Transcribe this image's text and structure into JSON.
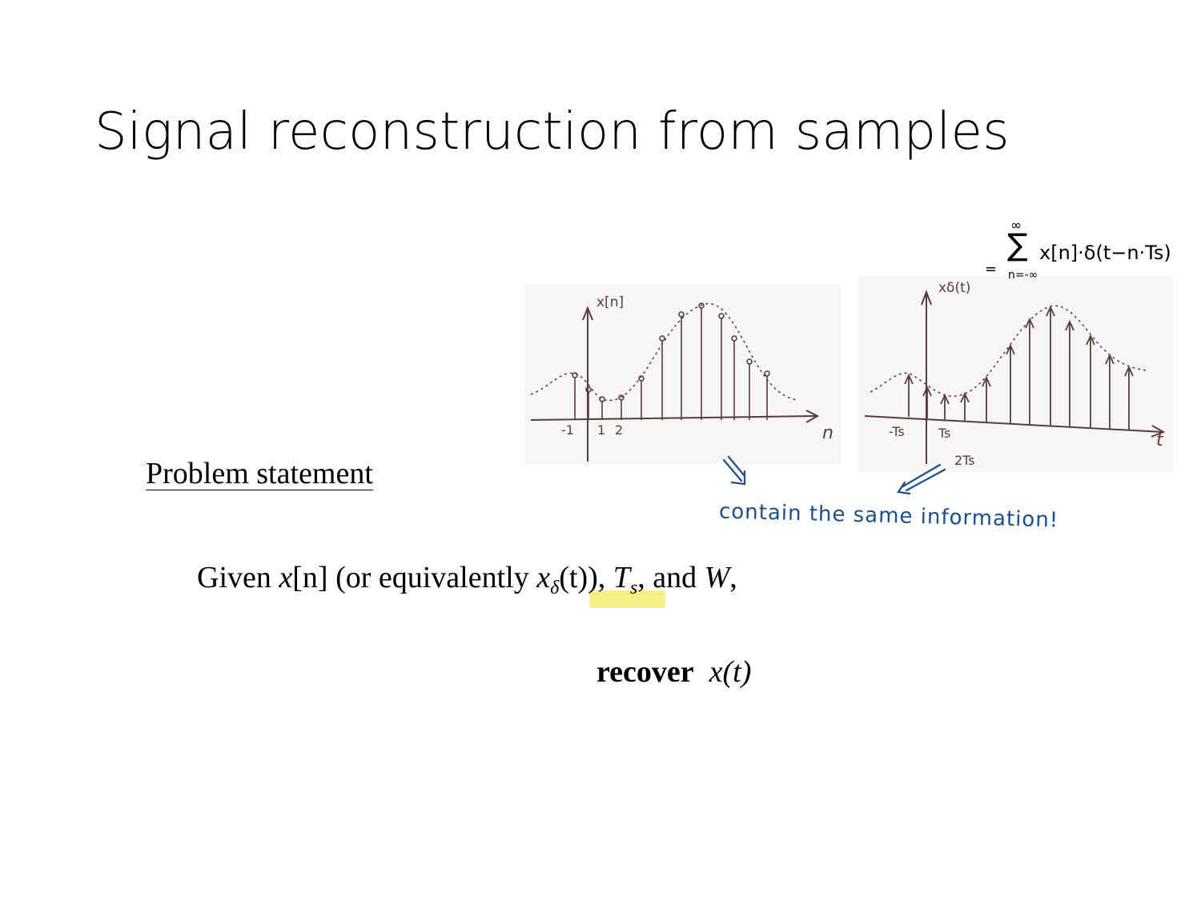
{
  "slide": {
    "title": "Signal reconstruction from samples",
    "problem_heading": "Problem statement",
    "given": {
      "word_given": "Given",
      "x": "x",
      "n_bracket": "[n]",
      "paren_open": " (or equivalently ",
      "x_delta": "x",
      "delta": "δ",
      "t_part": "(t)),",
      "T": " T",
      "s": "s",
      "and": ", and ",
      "W": "W",
      "comma": ","
    },
    "recover": {
      "bold": "recover",
      "expr": "x(t)"
    }
  },
  "figure_left": {
    "ylabel": "x[n]",
    "xlabel": "n",
    "ticks": [
      "-1",
      "1",
      "2"
    ]
  },
  "figure_right": {
    "ylabel": "xδ(t)",
    "xlabel": "t",
    "ticks": [
      "-Ts",
      "Ts",
      "2Ts"
    ]
  },
  "annotations": {
    "formula_eq": "=",
    "formula_sum": "∑",
    "formula_top": "∞",
    "formula_bottom": "n=-∞",
    "formula_body": "x[n]·δ(t−n·Ts)",
    "note": "contain the same information!"
  },
  "colors": {
    "ink_blue": "#1c4f8a",
    "sketch_brown": "#5a3c3c",
    "highlight": "#f5ef6e"
  }
}
